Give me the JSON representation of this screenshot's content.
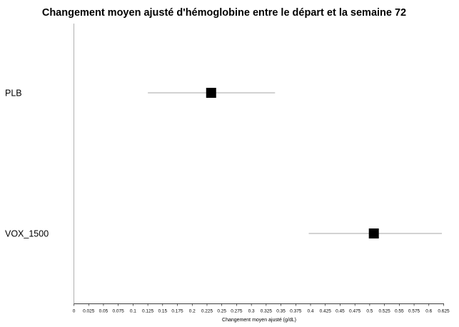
{
  "chart_data": {
    "type": "scatter",
    "title": "Changement moyen ajusté d'hémoglobine entre le départ et la semaine 72",
    "xlabel": "Changement moyen ajusté (g/dL)",
    "ylabel": "",
    "xlim": [
      0,
      0.625
    ],
    "x_ticks": [
      0,
      0.025,
      0.05,
      0.075,
      0.1,
      0.125,
      0.15,
      0.175,
      0.2,
      0.225,
      0.25,
      0.275,
      0.3,
      0.325,
      0.35,
      0.375,
      0.4,
      0.425,
      0.45,
      0.475,
      0.5,
      0.525,
      0.55,
      0.575,
      0.6,
      0.625
    ],
    "x_tick_labels": [
      "0",
      "0.025",
      "0.05",
      "0.075",
      "0.1",
      "0.125",
      "0.15",
      "0.175",
      "0.2",
      "0.225",
      "0.25",
      "0.275",
      "0.3",
      "0.325",
      "0.35",
      "0.375",
      "0.4",
      "0.425",
      "0.45",
      "0.475",
      "0.5",
      "0.525",
      "0.55",
      "0.575",
      "0.6",
      "0.625"
    ],
    "categories": [
      "PLB",
      "VOX_1500"
    ],
    "estimates": [
      0.232,
      0.507
    ],
    "ci_lower": [
      0.125,
      0.397
    ],
    "ci_upper": [
      0.34,
      0.622
    ],
    "grid": false,
    "legend": "none",
    "colors": {
      "marker": "#000000",
      "ci_line": "#a6a6a6",
      "axis": "#b0b0b0",
      "text": "#000000"
    }
  }
}
